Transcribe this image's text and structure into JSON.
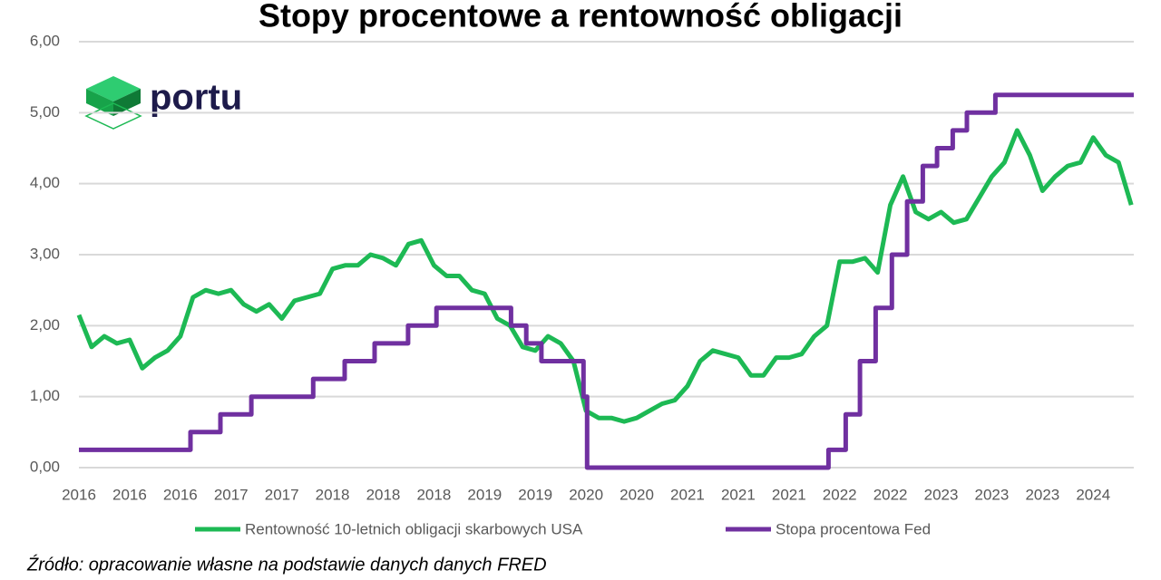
{
  "logo": "portu",
  "source": "Źródło: opracowanie własne na podstawie danych danych FRED",
  "chart_data": {
    "type": "line",
    "title": "Stopy procentowe a rentowność obligacji",
    "grid": true,
    "legend": "bottom",
    "xlim": [
      0,
      20.8
    ],
    "ylim": [
      0,
      6
    ],
    "yticks": [
      {
        "value": 0,
        "label": "0,00"
      },
      {
        "value": 1,
        "label": "1,00"
      },
      {
        "value": 2,
        "label": "2,00"
      },
      {
        "value": 3,
        "label": "3,00"
      },
      {
        "value": 4,
        "label": "4,00"
      },
      {
        "value": 5,
        "label": "5,00"
      },
      {
        "value": 6,
        "label": "6,00"
      }
    ],
    "xticks": [
      {
        "value": 0,
        "label": "2016"
      },
      {
        "value": 1,
        "label": "2016"
      },
      {
        "value": 2,
        "label": "2016"
      },
      {
        "value": 3,
        "label": "2017"
      },
      {
        "value": 4,
        "label": "2017"
      },
      {
        "value": 5,
        "label": "2018"
      },
      {
        "value": 6,
        "label": "2018"
      },
      {
        "value": 7,
        "label": "2018"
      },
      {
        "value": 8,
        "label": "2019"
      },
      {
        "value": 9,
        "label": "2019"
      },
      {
        "value": 10,
        "label": "2020"
      },
      {
        "value": 11,
        "label": "2020"
      },
      {
        "value": 12,
        "label": "2021"
      },
      {
        "value": 13,
        "label": "2021"
      },
      {
        "value": 14,
        "label": "2021"
      },
      {
        "value": 15,
        "label": "2022"
      },
      {
        "value": 16,
        "label": "2022"
      },
      {
        "value": 17,
        "label": "2023"
      },
      {
        "value": 18,
        "label": "2023"
      },
      {
        "value": 19,
        "label": "2023"
      },
      {
        "value": 20,
        "label": "2024"
      }
    ],
    "series": [
      {
        "name": "Rentowność 10-letnich obligacji skarbowych USA",
        "color": "#1db954",
        "x": [
          0,
          0.25,
          0.5,
          0.75,
          1,
          1.25,
          1.5,
          1.75,
          2,
          2.25,
          2.5,
          2.75,
          3,
          3.25,
          3.5,
          3.75,
          4,
          4.25,
          4.5,
          4.75,
          5,
          5.25,
          5.5,
          5.75,
          6,
          6.25,
          6.5,
          6.75,
          7,
          7.25,
          7.5,
          7.75,
          8,
          8.25,
          8.5,
          8.75,
          9,
          9.25,
          9.5,
          9.75,
          10,
          10.25,
          10.5,
          10.75,
          11,
          11.25,
          11.5,
          11.75,
          12,
          12.25,
          12.5,
          12.75,
          13,
          13.25,
          13.5,
          13.75,
          14,
          14.25,
          14.5,
          14.75,
          15,
          15.25,
          15.5,
          15.75,
          16,
          16.25,
          16.5,
          16.75,
          17,
          17.25,
          17.5,
          17.75,
          18,
          18.25,
          18.5,
          18.75,
          19,
          19.25,
          19.5,
          19.75,
          20,
          20.25,
          20.5,
          20.75
        ],
        "values": [
          2.15,
          1.7,
          1.85,
          1.75,
          1.8,
          1.4,
          1.55,
          1.65,
          1.85,
          2.4,
          2.5,
          2.45,
          2.5,
          2.3,
          2.2,
          2.3,
          2.1,
          2.35,
          2.4,
          2.45,
          2.8,
          2.85,
          2.85,
          3.0,
          2.95,
          2.85,
          3.15,
          3.2,
          2.85,
          2.7,
          2.7,
          2.5,
          2.45,
          2.1,
          2.0,
          1.7,
          1.65,
          1.85,
          1.75,
          1.5,
          0.8,
          0.7,
          0.7,
          0.65,
          0.7,
          0.8,
          0.9,
          0.95,
          1.15,
          1.5,
          1.65,
          1.6,
          1.55,
          1.3,
          1.3,
          1.55,
          1.55,
          1.6,
          1.85,
          2.0,
          2.9,
          2.9,
          2.95,
          2.75,
          3.7,
          4.1,
          3.6,
          3.5,
          3.6,
          3.45,
          3.5,
          3.8,
          4.1,
          4.3,
          4.75,
          4.4,
          3.9,
          4.1,
          4.25,
          4.3,
          4.65,
          4.4,
          4.3,
          3.7
        ]
      },
      {
        "name": "Stopa procentowa Fed",
        "color": "#7030a0",
        "x": [
          0,
          2.2,
          2.2,
          2.79,
          2.79,
          3.4,
          3.4,
          4.62,
          4.62,
          5.24,
          5.24,
          5.83,
          5.83,
          6.49,
          6.49,
          7.05,
          7.05,
          8.52,
          8.52,
          8.82,
          8.82,
          9.12,
          9.12,
          9.95,
          9.95,
          10.02,
          10.02,
          14.78,
          14.78,
          15.12,
          15.12,
          15.4,
          15.4,
          15.71,
          15.71,
          16.03,
          16.03,
          16.33,
          16.33,
          16.64,
          16.64,
          16.92,
          16.92,
          17.23,
          17.23,
          17.51,
          17.51,
          18.07,
          18.07,
          20.8
        ],
        "values": [
          0.25,
          0.25,
          0.5,
          0.5,
          0.75,
          0.75,
          1,
          1,
          1.25,
          1.25,
          1.5,
          1.5,
          1.75,
          1.75,
          2,
          2,
          2.25,
          2.25,
          2,
          2,
          1.75,
          1.75,
          1.5,
          1.5,
          1,
          1,
          0,
          0,
          0.25,
          0.25,
          0.75,
          0.75,
          1.5,
          1.5,
          2.25,
          2.25,
          3,
          3,
          3.75,
          3.75,
          4.25,
          4.25,
          4.5,
          4.5,
          4.75,
          4.75,
          5,
          5,
          5.25,
          5.25
        ]
      }
    ]
  }
}
